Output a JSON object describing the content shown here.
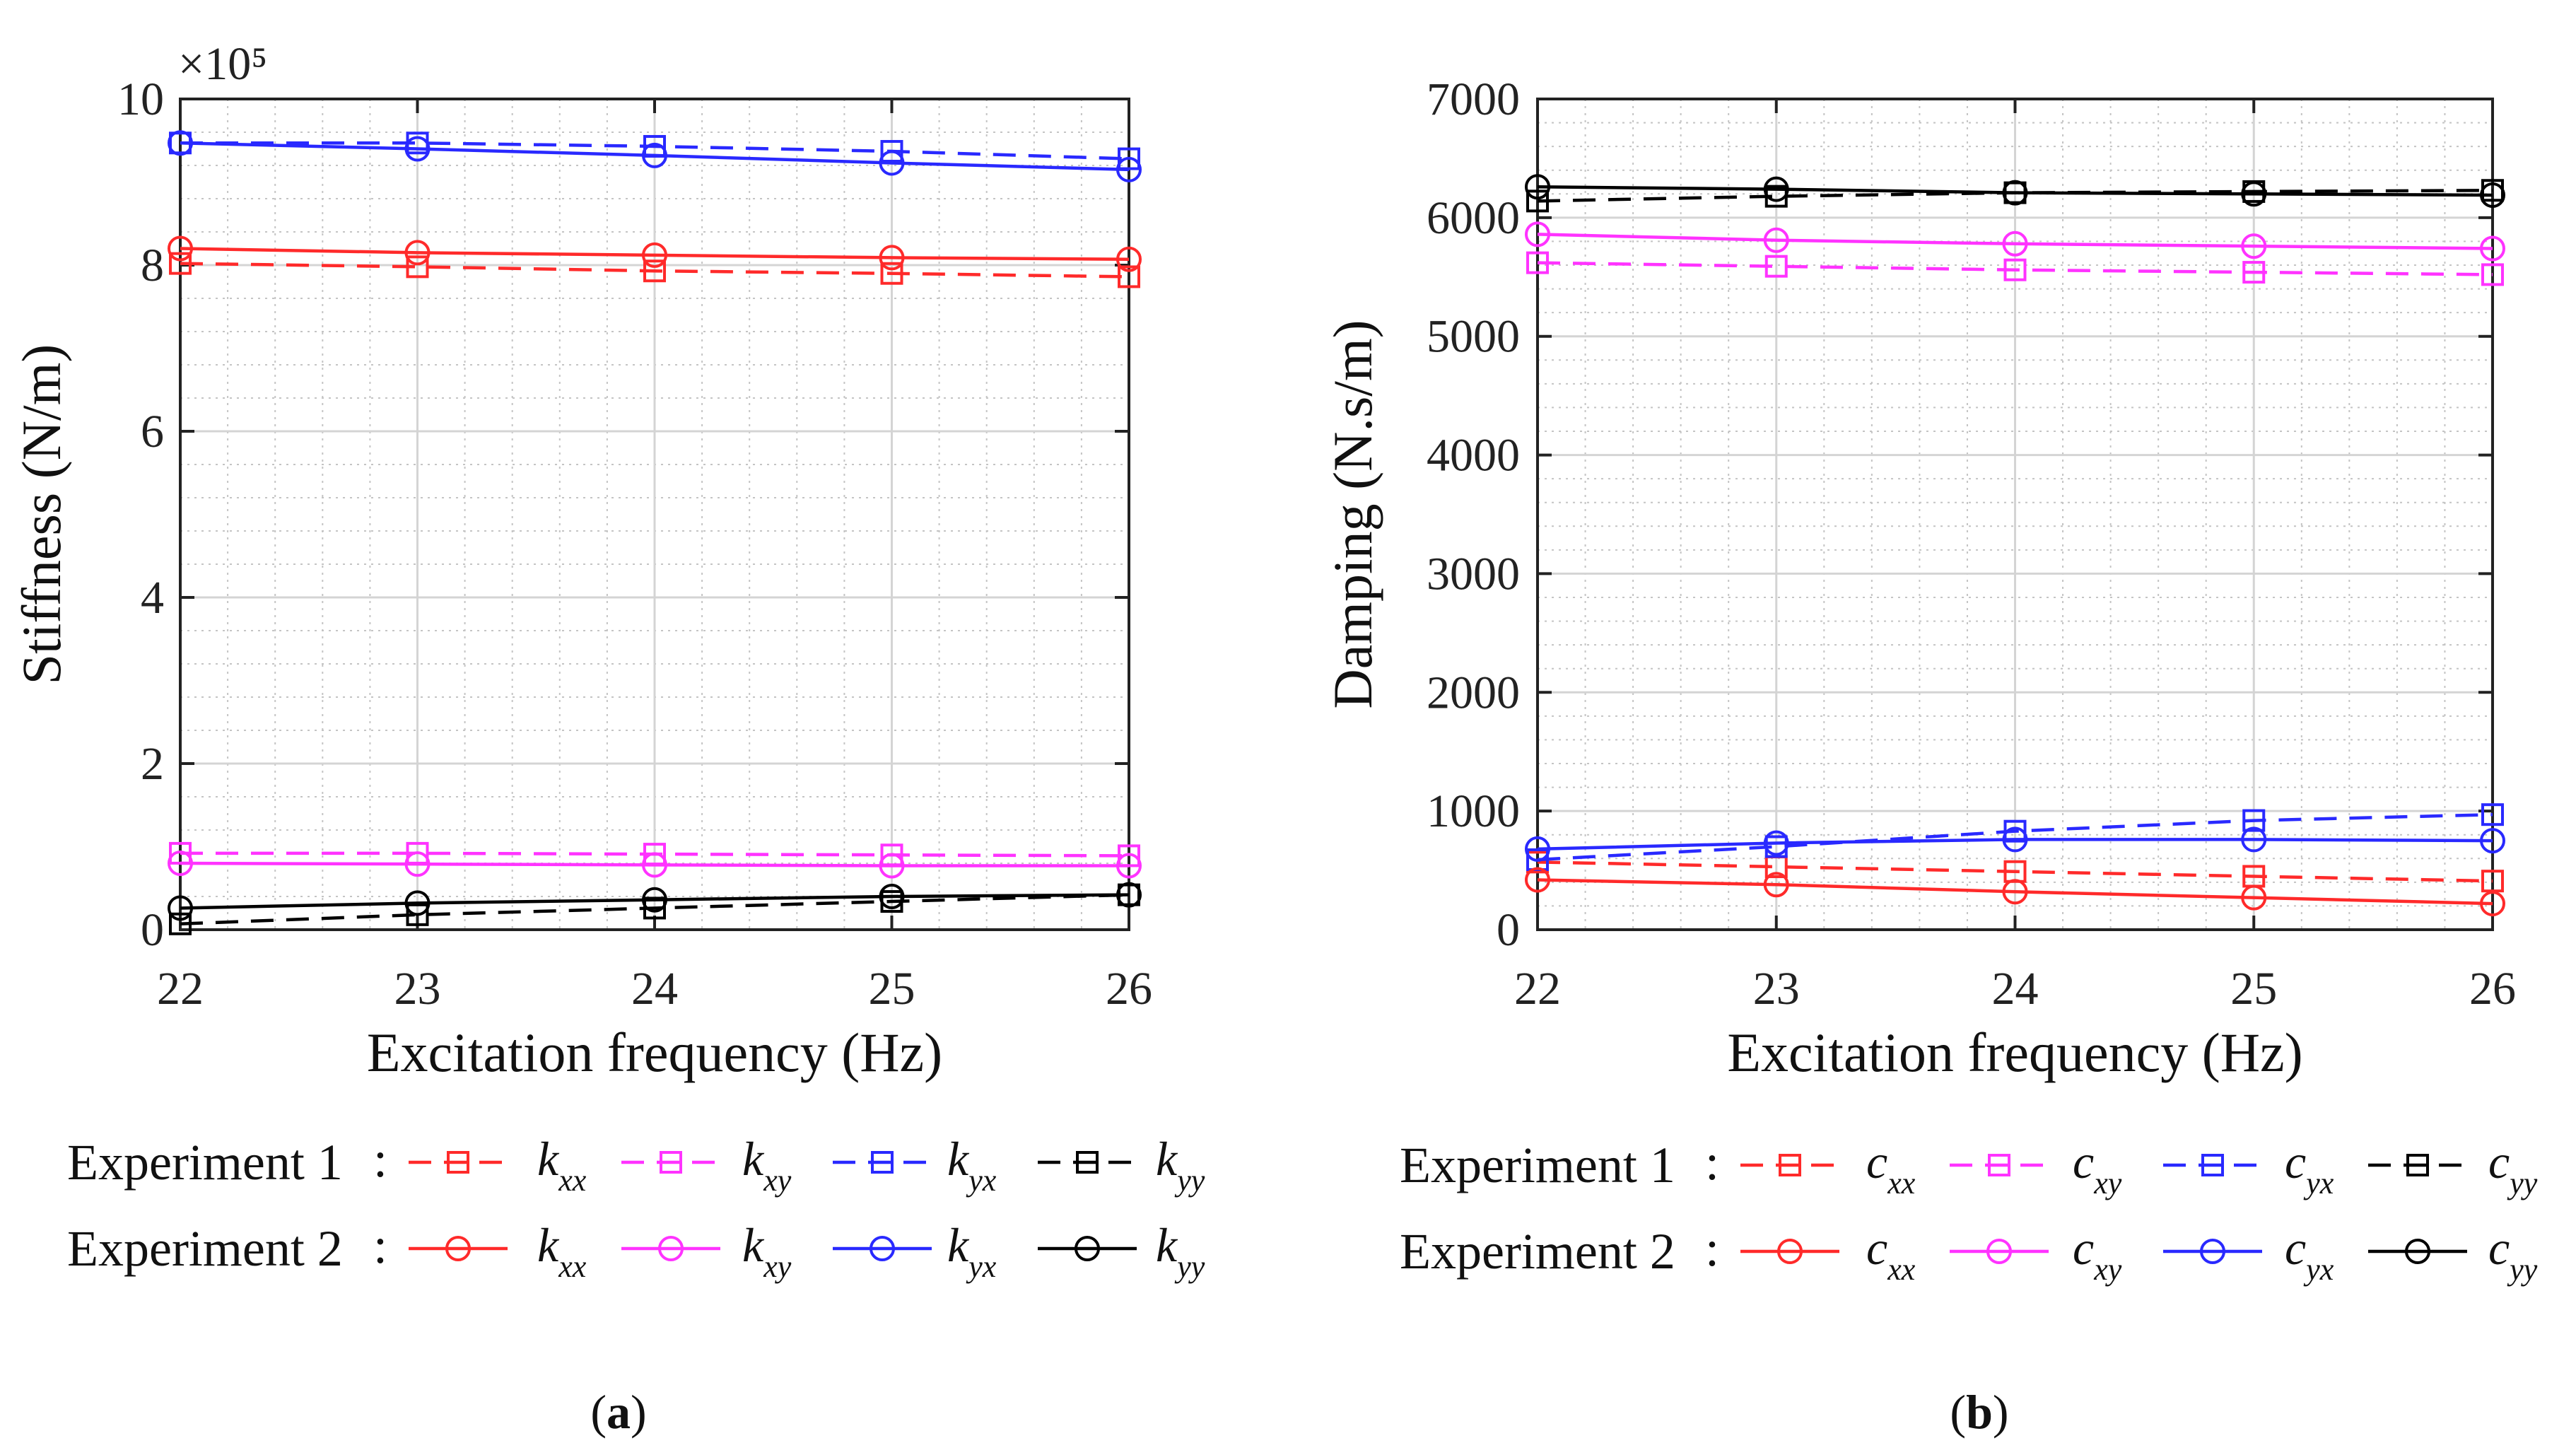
{
  "chart_data": [
    {
      "type": "line",
      "panel_label": "(a)",
      "panel_letter": "a",
      "title": "",
      "xlabel": "Excitation frequency (Hz)",
      "ylabel": "Stiffness (N/m)",
      "exponent_label": "×10⁵",
      "x": [
        22,
        23,
        24,
        25,
        26
      ],
      "xlim": [
        22,
        26
      ],
      "ylim": [
        0,
        10
      ],
      "xticks": [
        "22",
        "23",
        "24",
        "25",
        "26"
      ],
      "yticks": [
        "0",
        "2",
        "4",
        "6",
        "8",
        "10"
      ],
      "grid": true,
      "legend": [
        {
          "row_label": "Experiment 1",
          "line_style": "dashed",
          "marker": "square",
          "entries": [
            {
              "symbol": "k",
              "sub": "xx",
              "color": "#ff2a2a"
            },
            {
              "symbol": "k",
              "sub": "xy",
              "color": "#ff33ff"
            },
            {
              "symbol": "k",
              "sub": "yx",
              "color": "#2929ff"
            },
            {
              "symbol": "k",
              "sub": "yy",
              "color": "#000000"
            }
          ]
        },
        {
          "row_label": "Experiment 2",
          "line_style": "solid",
          "marker": "circle",
          "entries": [
            {
              "symbol": "k",
              "sub": "xx",
              "color": "#ff2a2a"
            },
            {
              "symbol": "k",
              "sub": "xy",
              "color": "#ff33ff"
            },
            {
              "symbol": "k",
              "sub": "yx",
              "color": "#2929ff"
            },
            {
              "symbol": "k",
              "sub": "yy",
              "color": "#000000"
            }
          ]
        }
      ],
      "series": [
        {
          "name": "Experiment 1 k_xx",
          "color": "#ff2a2a",
          "line": "dashed",
          "marker": "square",
          "values": [
            8.02,
            7.98,
            7.93,
            7.9,
            7.86
          ]
        },
        {
          "name": "Experiment 1 k_xy",
          "color": "#ff33ff",
          "line": "dashed",
          "marker": "square",
          "values": [
            0.92,
            0.92,
            0.91,
            0.9,
            0.89
          ]
        },
        {
          "name": "Experiment 1 k_yx",
          "color": "#2929ff",
          "line": "dashed",
          "marker": "square",
          "values": [
            9.47,
            9.47,
            9.43,
            9.37,
            9.28
          ]
        },
        {
          "name": "Experiment 1 k_yy",
          "color": "#000000",
          "line": "dashed",
          "marker": "square",
          "values": [
            0.07,
            0.18,
            0.26,
            0.34,
            0.42
          ]
        },
        {
          "name": "Experiment 2 k_xx",
          "color": "#ff2a2a",
          "line": "solid",
          "marker": "circle",
          "values": [
            8.2,
            8.15,
            8.12,
            8.09,
            8.07
          ]
        },
        {
          "name": "Experiment 2 k_xy",
          "color": "#ff33ff",
          "line": "solid",
          "marker": "circle",
          "values": [
            0.8,
            0.79,
            0.78,
            0.77,
            0.77
          ]
        },
        {
          "name": "Experiment 2 k_yx",
          "color": "#2929ff",
          "line": "solid",
          "marker": "circle",
          "values": [
            9.47,
            9.4,
            9.32,
            9.23,
            9.15
          ]
        },
        {
          "name": "Experiment 2 k_yy",
          "color": "#000000",
          "line": "solid",
          "marker": "circle",
          "values": [
            0.26,
            0.32,
            0.36,
            0.4,
            0.42
          ]
        }
      ]
    },
    {
      "type": "line",
      "panel_label": "(b)",
      "panel_letter": "b",
      "title": "",
      "xlabel": "Excitation frequency (Hz)",
      "ylabel": "Damping (N.s/m)",
      "x": [
        22,
        23,
        24,
        25,
        26
      ],
      "xlim": [
        22,
        26
      ],
      "ylim": [
        0,
        7000
      ],
      "xticks": [
        "22",
        "23",
        "24",
        "25",
        "26"
      ],
      "yticks": [
        "0",
        "1000",
        "2000",
        "3000",
        "4000",
        "5000",
        "6000",
        "7000"
      ],
      "grid": true,
      "legend": [
        {
          "row_label": "Experiment 1",
          "line_style": "dashed",
          "marker": "square",
          "entries": [
            {
              "symbol": "c",
              "sub": "xx",
              "color": "#ff2a2a"
            },
            {
              "symbol": "c",
              "sub": "xy",
              "color": "#ff33ff"
            },
            {
              "symbol": "c",
              "sub": "yx",
              "color": "#2929ff"
            },
            {
              "symbol": "c",
              "sub": "yy",
              "color": "#000000"
            }
          ]
        },
        {
          "row_label": "Experiment 2",
          "line_style": "solid",
          "marker": "circle",
          "entries": [
            {
              "symbol": "c",
              "sub": "xx",
              "color": "#ff2a2a"
            },
            {
              "symbol": "c",
              "sub": "xy",
              "color": "#ff33ff"
            },
            {
              "symbol": "c",
              "sub": "yx",
              "color": "#2929ff"
            },
            {
              "symbol": "c",
              "sub": "yy",
              "color": "#000000"
            }
          ]
        }
      ],
      "series": [
        {
          "name": "Experiment 1 c_xx",
          "color": "#ff2a2a",
          "line": "dashed",
          "marker": "square",
          "values": [
            570,
            530,
            490,
            450,
            410
          ]
        },
        {
          "name": "Experiment 1 c_xy",
          "color": "#ff33ff",
          "line": "dashed",
          "marker": "square",
          "values": [
            5620,
            5590,
            5560,
            5540,
            5520
          ]
        },
        {
          "name": "Experiment 1 c_yx",
          "color": "#2929ff",
          "line": "dashed",
          "marker": "square",
          "values": [
            590,
            700,
            830,
            920,
            970
          ]
        },
        {
          "name": "Experiment 1 c_yy",
          "color": "#000000",
          "line": "dashed",
          "marker": "square",
          "values": [
            6140,
            6180,
            6210,
            6220,
            6230
          ]
        },
        {
          "name": "Experiment 2 c_xx",
          "color": "#ff2a2a",
          "line": "solid",
          "marker": "circle",
          "values": [
            420,
            380,
            320,
            270,
            220
          ]
        },
        {
          "name": "Experiment 2 c_xy",
          "color": "#ff33ff",
          "line": "solid",
          "marker": "circle",
          "values": [
            5860,
            5810,
            5780,
            5760,
            5740
          ]
        },
        {
          "name": "Experiment 2 c_yx",
          "color": "#2929ff",
          "line": "solid",
          "marker": "circle",
          "values": [
            680,
            730,
            760,
            760,
            750
          ]
        },
        {
          "name": "Experiment 2 c_yy",
          "color": "#000000",
          "line": "solid",
          "marker": "circle",
          "values": [
            6260,
            6240,
            6210,
            6200,
            6190
          ]
        }
      ]
    }
  ]
}
